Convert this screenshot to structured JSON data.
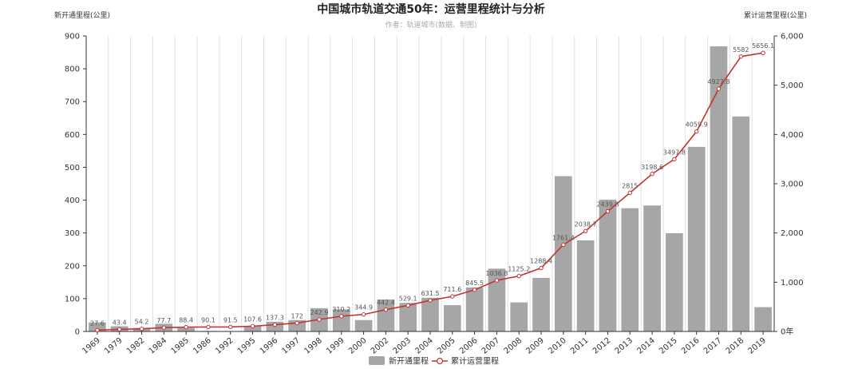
{
  "chart_data": {
    "type": "bar+line",
    "title": "中国城市轨道交通50年：运营里程统计与分析",
    "subtitle": "作者：轨道城市(数据、制图)",
    "ylabel_left": "新开通里程(公里)",
    "ylabel_right": "累计运营里程(公里)",
    "categories": [
      "1969",
      "1979",
      "1982",
      "1984",
      "1985",
      "1986",
      "1992",
      "1995",
      "1996",
      "1997",
      "1998",
      "1999",
      "2000",
      "2002",
      "2003",
      "2004",
      "2005",
      "2006",
      "2007",
      "2008",
      "2009",
      "2010",
      "2011",
      "2012",
      "2013",
      "2014",
      "2015",
      "2016",
      "2017",
      "2018",
      "2019"
    ],
    "ylim_left": [
      0,
      900
    ],
    "ylim_right": [
      0,
      6000
    ],
    "yticks_left": [
      "0",
      "100",
      "200",
      "300",
      "400",
      "500",
      "600",
      "700",
      "800",
      "900"
    ],
    "yticks_right": [
      "0年",
      "1,000",
      "2,000",
      "3,000",
      "4,000",
      "5,000",
      "6,000"
    ],
    "series": [
      {
        "name": "新开通里程",
        "type": "bar",
        "axis": "left",
        "color": "#a6a6a6",
        "values": [
          27.6,
          15.8,
          10.8,
          23.5,
          10.7,
          1.7,
          1.4,
          16.1,
          29.7,
          34.7,
          70.9,
          67.3,
          34.7,
          97.5,
          87.0,
          102.4,
          80.1,
          133.9,
          191.3,
          88.4,
          163.2,
          473.0,
          277.5,
          401.3,
          375.4,
          383.6,
          299.2,
          562.2,
          868.3,
          654.7,
          74.1
        ]
      },
      {
        "name": "累计运营里程",
        "type": "line",
        "axis": "right",
        "color": "#c23531",
        "values": [
          27.6,
          43.4,
          54.2,
          77.7,
          88.4,
          90.1,
          91.5,
          107.6,
          137.3,
          172,
          242.9,
          310.2,
          344.9,
          442.4,
          529.1,
          631.5,
          711.6,
          845.5,
          1036.8,
          1125.2,
          1288.4,
          1761.4,
          2038.7,
          2439.8,
          2815,
          3198.6,
          3497.8,
          4059.9,
          4927.8,
          5582,
          5656.1
        ],
        "labels": [
          "27.6",
          "43.4",
          "54.2",
          "77.7",
          "88.4",
          "90.1",
          "91.5",
          "107.6",
          "137.3",
          "172",
          "242.9",
          "310.2",
          "344.9",
          "442.4",
          "529.1",
          "631.5",
          "711.6",
          "845.5",
          "1036.8",
          "1125.2",
          "1288.4",
          "1761.4",
          "2038.7",
          "2439.8",
          "2815",
          "3198.6",
          "3497.8",
          "4059.9",
          "4927.8",
          "5582",
          "5656.1"
        ]
      }
    ],
    "grid": {
      "vertical": true,
      "horizontal": false
    },
    "legend_position": "bottom-center"
  }
}
